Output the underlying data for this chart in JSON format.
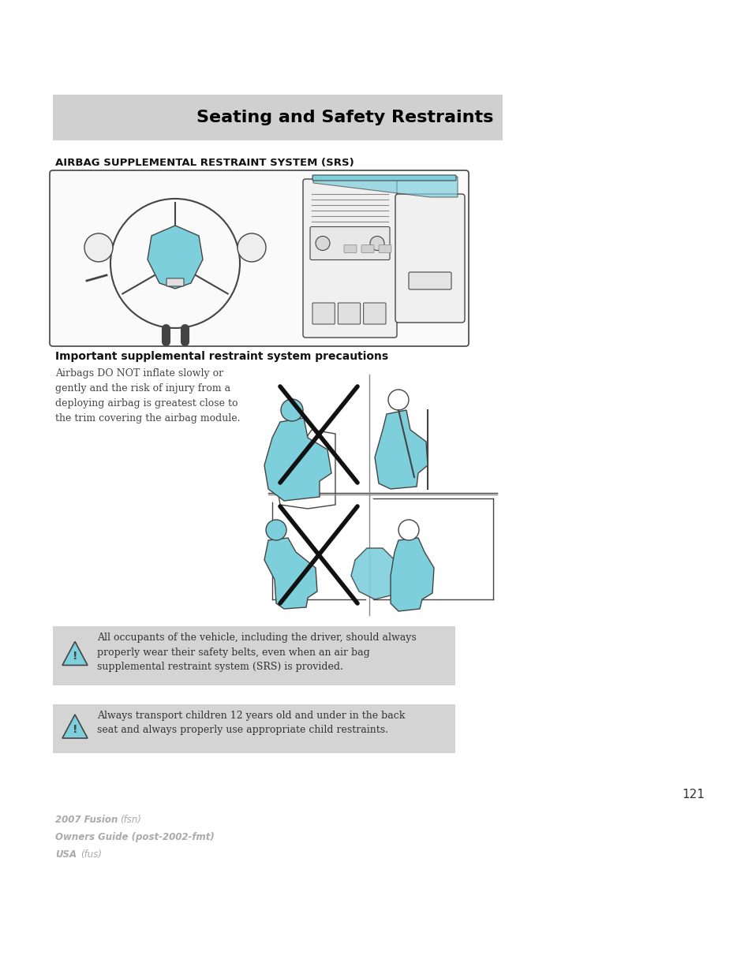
{
  "page_bg": "#ffffff",
  "header_bg": "#d0d0d0",
  "header_text": "Seating and Safety Restraints",
  "header_text_color": "#000000",
  "section_title": "AIRBAG SUPPLEMENTAL RESTRAINT SYSTEM (SRS)",
  "subsection_title": "Important supplemental restraint system precautions",
  "body_text": "Airbags DO NOT inflate slowly or\ngently and the risk of injury from a\ndeploying airbag is greatest close to\nthe trim covering the airbag module.",
  "warning_bg": "#d4d4d4",
  "warning1_text": "All occupants of the vehicle, including the driver, should always\nproperly wear their safety belts, even when an air bag\nsupplemental restraint system (SRS) is provided.",
  "warning2_text": "Always transport children 12 years old and under in the back\nseat and always properly use appropriate child restraints.",
  "page_number": "121",
  "footer_line1_bold": "2007 Fusion",
  "footer_line1_italic": "(fsn)",
  "footer_line2": "Owners Guide (post-2002-fmt)",
  "footer_line3_bold": "USA",
  "footer_line3_italic": "(fus)",
  "footer_color": "#aaaaaa",
  "cyan": "#7ecfdc",
  "dark": "#444444",
  "mid": "#888888",
  "light": "#cccccc"
}
